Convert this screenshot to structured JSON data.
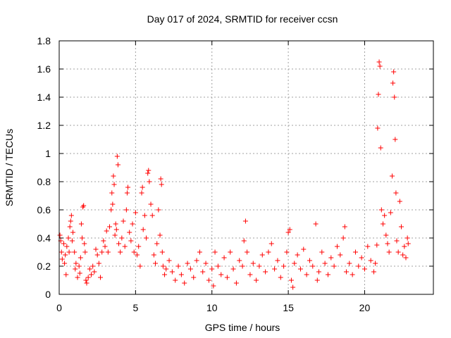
{
  "chart_data": {
    "type": "scatter",
    "title": "Day 017 of 2024, SRMTID for receiver ccsn",
    "xlabel": "GPS time / hours",
    "ylabel": "SRMTID / TECUs",
    "xlim": [
      0,
      24.5
    ],
    "ylim": [
      0,
      1.8
    ],
    "x_ticks": [
      0,
      5,
      10,
      15,
      20
    ],
    "x_tick_labels": [
      "0",
      "5",
      "10",
      "15",
      "20"
    ],
    "y_ticks": [
      0,
      0.2,
      0.4,
      0.6,
      0.8,
      1.0,
      1.2,
      1.4,
      1.6,
      1.8
    ],
    "y_tick_labels": [
      "0",
      "0.2",
      "0.4",
      "0.6",
      "0.8",
      "1",
      "1.2",
      "1.4",
      "1.6",
      "1.8"
    ],
    "grid": true,
    "marker": "+",
    "series": [
      {
        "name": "SRMTID",
        "color": "#ff0000",
        "points": [
          [
            0.05,
            0.42
          ],
          [
            0.1,
            0.38
          ],
          [
            0.15,
            0.3
          ],
          [
            0.2,
            0.25
          ],
          [
            0.3,
            0.36
          ],
          [
            0.35,
            0.22
          ],
          [
            0.4,
            0.28
          ],
          [
            0.45,
            0.14
          ],
          [
            0.5,
            0.34
          ],
          [
            0.6,
            0.4
          ],
          [
            0.65,
            0.3
          ],
          [
            0.7,
            0.48
          ],
          [
            0.75,
            0.52
          ],
          [
            0.8,
            0.56
          ],
          [
            0.85,
            0.38
          ],
          [
            0.9,
            0.44
          ],
          [
            1.0,
            0.3
          ],
          [
            1.05,
            0.18
          ],
          [
            1.1,
            0.22
          ],
          [
            1.2,
            0.12
          ],
          [
            1.3,
            0.2
          ],
          [
            1.35,
            0.15
          ],
          [
            1.4,
            0.26
          ],
          [
            1.45,
            0.5
          ],
          [
            1.5,
            0.4
          ],
          [
            1.55,
            0.62
          ],
          [
            1.6,
            0.63
          ],
          [
            1.65,
            0.36
          ],
          [
            1.7,
            0.3
          ],
          [
            1.75,
            0.1
          ],
          [
            1.8,
            0.08
          ],
          [
            1.9,
            0.12
          ],
          [
            2.0,
            0.18
          ],
          [
            2.1,
            0.14
          ],
          [
            2.2,
            0.2
          ],
          [
            2.3,
            0.16
          ],
          [
            2.4,
            0.32
          ],
          [
            2.5,
            0.28
          ],
          [
            2.6,
            0.22
          ],
          [
            2.7,
            0.12
          ],
          [
            2.8,
            0.3
          ],
          [
            2.9,
            0.38
          ],
          [
            3.0,
            0.34
          ],
          [
            3.1,
            0.45
          ],
          [
            3.2,
            0.3
          ],
          [
            3.3,
            0.48
          ],
          [
            3.4,
            0.6
          ],
          [
            3.45,
            0.72
          ],
          [
            3.5,
            0.64
          ],
          [
            3.55,
            0.84
          ],
          [
            3.6,
            0.78
          ],
          [
            3.65,
            0.42
          ],
          [
            3.7,
            0.5
          ],
          [
            3.75,
            0.46
          ],
          [
            3.8,
            0.98
          ],
          [
            3.85,
            0.92
          ],
          [
            3.9,
            0.36
          ],
          [
            4.0,
            0.3
          ],
          [
            4.1,
            0.4
          ],
          [
            4.2,
            0.52
          ],
          [
            4.3,
            0.34
          ],
          [
            4.4,
            0.6
          ],
          [
            4.45,
            0.72
          ],
          [
            4.5,
            0.76
          ],
          [
            4.6,
            0.44
          ],
          [
            4.7,
            0.38
          ],
          [
            4.8,
            0.5
          ],
          [
            4.9,
            0.3
          ],
          [
            5.0,
            0.58
          ],
          [
            5.1,
            0.28
          ],
          [
            5.2,
            0.34
          ],
          [
            5.3,
            0.2
          ],
          [
            5.4,
            0.72
          ],
          [
            5.45,
            0.76
          ],
          [
            5.5,
            0.46
          ],
          [
            5.6,
            0.56
          ],
          [
            5.7,
            0.4
          ],
          [
            5.8,
            0.86
          ],
          [
            5.85,
            0.88
          ],
          [
            5.9,
            0.8
          ],
          [
            6.0,
            0.64
          ],
          [
            6.1,
            0.56
          ],
          [
            6.2,
            0.28
          ],
          [
            6.3,
            0.22
          ],
          [
            6.4,
            0.36
          ],
          [
            6.5,
            0.6
          ],
          [
            6.6,
            0.42
          ],
          [
            6.65,
            0.82
          ],
          [
            6.7,
            0.78
          ],
          [
            6.75,
            0.3
          ],
          [
            6.8,
            0.2
          ],
          [
            6.9,
            0.14
          ],
          [
            7.0,
            0.18
          ],
          [
            7.2,
            0.24
          ],
          [
            7.4,
            0.16
          ],
          [
            7.6,
            0.1
          ],
          [
            7.8,
            0.2
          ],
          [
            8.0,
            0.14
          ],
          [
            8.2,
            0.08
          ],
          [
            8.4,
            0.22
          ],
          [
            8.6,
            0.18
          ],
          [
            8.8,
            0.12
          ],
          [
            9.0,
            0.24
          ],
          [
            9.2,
            0.3
          ],
          [
            9.4,
            0.16
          ],
          [
            9.6,
            0.22
          ],
          [
            9.8,
            0.1
          ],
          [
            10.0,
            0.18
          ],
          [
            10.1,
            0.06
          ],
          [
            10.2,
            0.3
          ],
          [
            10.4,
            0.2
          ],
          [
            10.6,
            0.14
          ],
          [
            10.8,
            0.26
          ],
          [
            11.0,
            0.12
          ],
          [
            11.2,
            0.3
          ],
          [
            11.4,
            0.18
          ],
          [
            11.6,
            0.08
          ],
          [
            11.8,
            0.24
          ],
          [
            12.0,
            0.2
          ],
          [
            12.1,
            0.38
          ],
          [
            12.2,
            0.52
          ],
          [
            12.3,
            0.3
          ],
          [
            12.5,
            0.14
          ],
          [
            12.7,
            0.22
          ],
          [
            12.9,
            0.1
          ],
          [
            13.1,
            0.2
          ],
          [
            13.3,
            0.28
          ],
          [
            13.5,
            0.16
          ],
          [
            13.7,
            0.3
          ],
          [
            13.9,
            0.36
          ],
          [
            14.1,
            0.18
          ],
          [
            14.3,
            0.24
          ],
          [
            14.5,
            0.12
          ],
          [
            14.7,
            0.2
          ],
          [
            14.9,
            0.3
          ],
          [
            15.0,
            0.44
          ],
          [
            15.1,
            0.46
          ],
          [
            15.2,
            0.1
          ],
          [
            15.3,
            0.05
          ],
          [
            15.4,
            0.22
          ],
          [
            15.6,
            0.28
          ],
          [
            15.8,
            0.18
          ],
          [
            16.0,
            0.32
          ],
          [
            16.2,
            0.14
          ],
          [
            16.4,
            0.24
          ],
          [
            16.6,
            0.2
          ],
          [
            16.8,
            0.5
          ],
          [
            16.9,
            0.1
          ],
          [
            17.0,
            0.16
          ],
          [
            17.2,
            0.3
          ],
          [
            17.4,
            0.22
          ],
          [
            17.6,
            0.14
          ],
          [
            17.8,
            0.26
          ],
          [
            18.0,
            0.2
          ],
          [
            18.2,
            0.34
          ],
          [
            18.4,
            0.28
          ],
          [
            18.6,
            0.4
          ],
          [
            18.7,
            0.48
          ],
          [
            18.8,
            0.16
          ],
          [
            19.0,
            0.22
          ],
          [
            19.2,
            0.14
          ],
          [
            19.4,
            0.3
          ],
          [
            19.6,
            0.2
          ],
          [
            19.8,
            0.26
          ],
          [
            20.0,
            0.18
          ],
          [
            20.2,
            0.34
          ],
          [
            20.4,
            0.24
          ],
          [
            20.6,
            0.16
          ],
          [
            20.7,
            0.22
          ],
          [
            20.8,
            0.35
          ],
          [
            20.85,
            1.18
          ],
          [
            20.9,
            1.42
          ],
          [
            20.95,
            1.65
          ],
          [
            21.0,
            1.62
          ],
          [
            21.05,
            1.04
          ],
          [
            21.1,
            0.6
          ],
          [
            21.2,
            0.5
          ],
          [
            21.3,
            0.56
          ],
          [
            21.4,
            0.42
          ],
          [
            21.5,
            0.36
          ],
          [
            21.6,
            0.3
          ],
          [
            21.7,
            0.58
          ],
          [
            21.8,
            0.84
          ],
          [
            21.85,
            1.5
          ],
          [
            21.9,
            1.58
          ],
          [
            21.95,
            1.4
          ],
          [
            22.0,
            1.1
          ],
          [
            22.05,
            0.72
          ],
          [
            22.1,
            0.38
          ],
          [
            22.2,
            0.3
          ],
          [
            22.3,
            0.66
          ],
          [
            22.4,
            0.48
          ],
          [
            22.5,
            0.28
          ],
          [
            22.6,
            0.34
          ],
          [
            22.7,
            0.26
          ],
          [
            22.8,
            0.4
          ],
          [
            22.85,
            0.36
          ]
        ]
      }
    ]
  }
}
